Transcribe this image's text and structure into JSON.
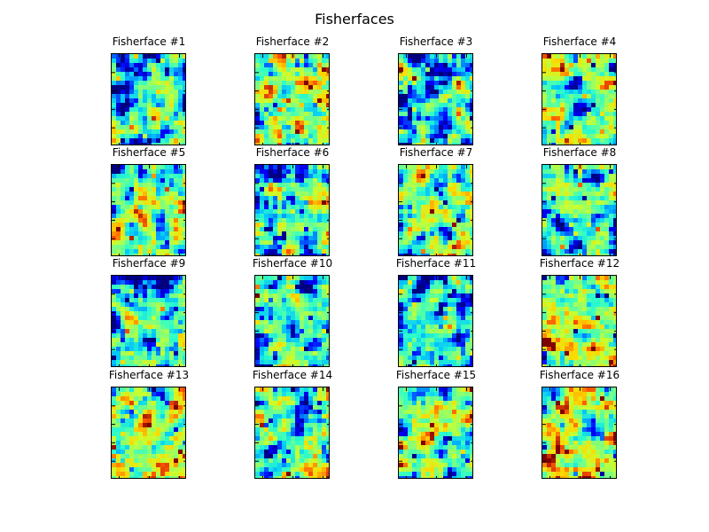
{
  "title": "Fisherfaces",
  "colormap": {
    "name": "jet",
    "stops": [
      "#00007f",
      "#0000ff",
      "#00bfff",
      "#2fffc8",
      "#7fff7f",
      "#c8ff2f",
      "#ffd700",
      "#ff5500",
      "#7f0000"
    ]
  },
  "chart_data": {
    "type": "heatmap",
    "layout": "4x4 grid of image panels",
    "colormap": "jet",
    "axes_ticks": "tick marks shown, no tick labels",
    "panels": [
      {
        "title": "Fisherface #1",
        "row": 0,
        "col": 0,
        "dominant": "cyan-green with blue patches",
        "bias": -0.1,
        "seed": 11
      },
      {
        "title": "Fisherface #2",
        "row": 0,
        "col": 1,
        "dominant": "green-yellow with red accents",
        "bias": 0.12,
        "seed": 23
      },
      {
        "title": "Fisherface #3",
        "row": 0,
        "col": 2,
        "dominant": "cyan with blue patches",
        "bias": -0.12,
        "seed": 37
      },
      {
        "title": "Fisherface #4",
        "row": 0,
        "col": 3,
        "dominant": "green-yellow",
        "bias": 0.05,
        "seed": 41
      },
      {
        "title": "Fisherface #5",
        "row": 1,
        "col": 0,
        "dominant": "green-yellow",
        "bias": 0.05,
        "seed": 53
      },
      {
        "title": "Fisherface #6",
        "row": 1,
        "col": 1,
        "dominant": "cyan-green with blue and red",
        "bias": -0.06,
        "seed": 67
      },
      {
        "title": "Fisherface #7",
        "row": 1,
        "col": 2,
        "dominant": "green with red accents",
        "bias": 0.04,
        "seed": 71
      },
      {
        "title": "Fisherface #8",
        "row": 1,
        "col": 3,
        "dominant": "cyan-green",
        "bias": -0.02,
        "seed": 83
      },
      {
        "title": "Fisherface #9",
        "row": 2,
        "col": 0,
        "dominant": "cyan with blue patches",
        "bias": -0.12,
        "seed": 97
      },
      {
        "title": "Fisherface #10",
        "row": 2,
        "col": 1,
        "dominant": "cyan-green with blue",
        "bias": -0.06,
        "seed": 101
      },
      {
        "title": "Fisherface #11",
        "row": 2,
        "col": 2,
        "dominant": "cyan with blue patches",
        "bias": -0.12,
        "seed": 113
      },
      {
        "title": "Fisherface #12",
        "row": 2,
        "col": 3,
        "dominant": "green-yellow with red accents",
        "bias": 0.1,
        "seed": 127
      },
      {
        "title": "Fisherface #13",
        "row": 3,
        "col": 0,
        "dominant": "green-yellow with red accents",
        "bias": 0.1,
        "seed": 131
      },
      {
        "title": "Fisherface #14",
        "row": 3,
        "col": 1,
        "dominant": "green with blue and red",
        "bias": 0.0,
        "seed": 149
      },
      {
        "title": "Fisherface #15",
        "row": 3,
        "col": 2,
        "dominant": "green-yellow",
        "bias": 0.06,
        "seed": 157
      },
      {
        "title": "Fisherface #16",
        "row": 3,
        "col": 3,
        "dominant": "yellow with red accents",
        "bias": 0.16,
        "seed": 163
      }
    ]
  }
}
